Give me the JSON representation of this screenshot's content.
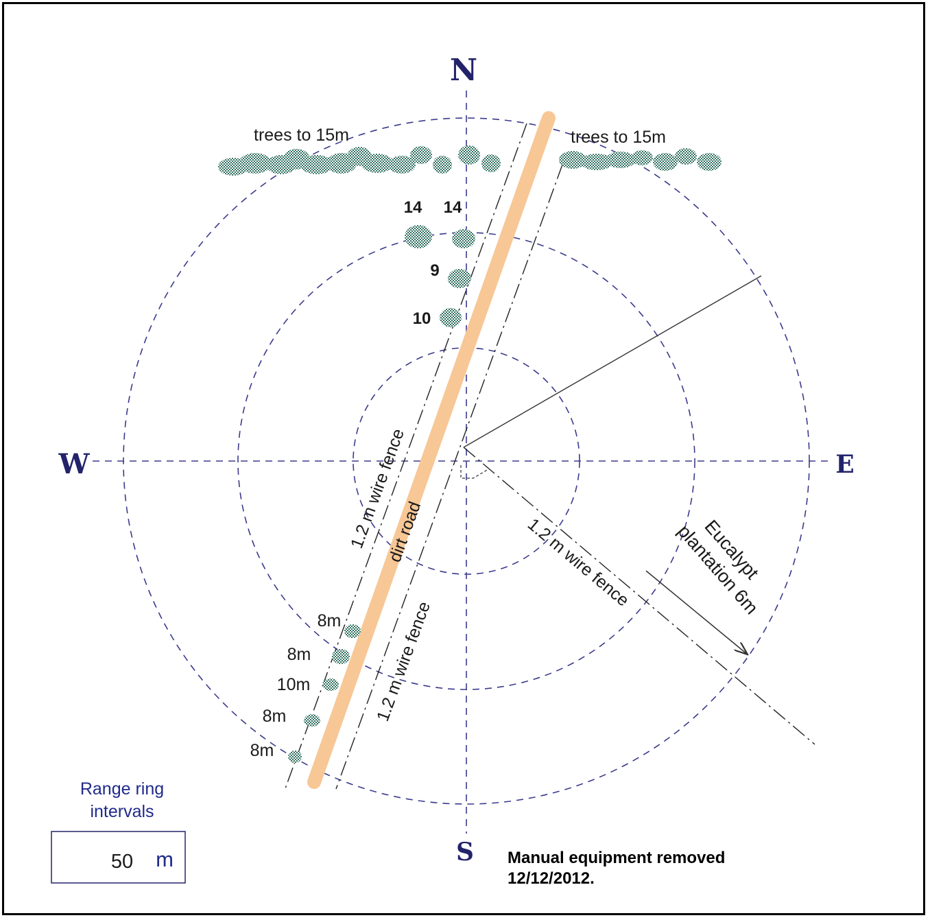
{
  "compass": {
    "north": "N",
    "south": "S",
    "east": "E",
    "west": "W"
  },
  "labels": {
    "trees_left": "trees to 15m",
    "trees_right": "trees to 15m",
    "tree_heights_north": [
      "14",
      "14",
      "9",
      "10"
    ],
    "tree_heights_southwest": [
      "8m",
      "8m",
      "10m",
      "8m",
      "8m"
    ],
    "wire_fence": "1.2 m wire fence",
    "dirt_road": "dirt road",
    "eucalypt": [
      "Eucalypt",
      "plantation 6m"
    ]
  },
  "legend": {
    "title_line1": "Range ring",
    "title_line2": "intervals",
    "value": "50",
    "unit": "m"
  },
  "note": {
    "line1": "Manual equipment removed",
    "line2": "12/12/2012."
  },
  "colors": {
    "rings": "#3a3a8c",
    "road": "#f7c796",
    "trees": "#2f6f5e",
    "compass": "#23236b"
  }
}
